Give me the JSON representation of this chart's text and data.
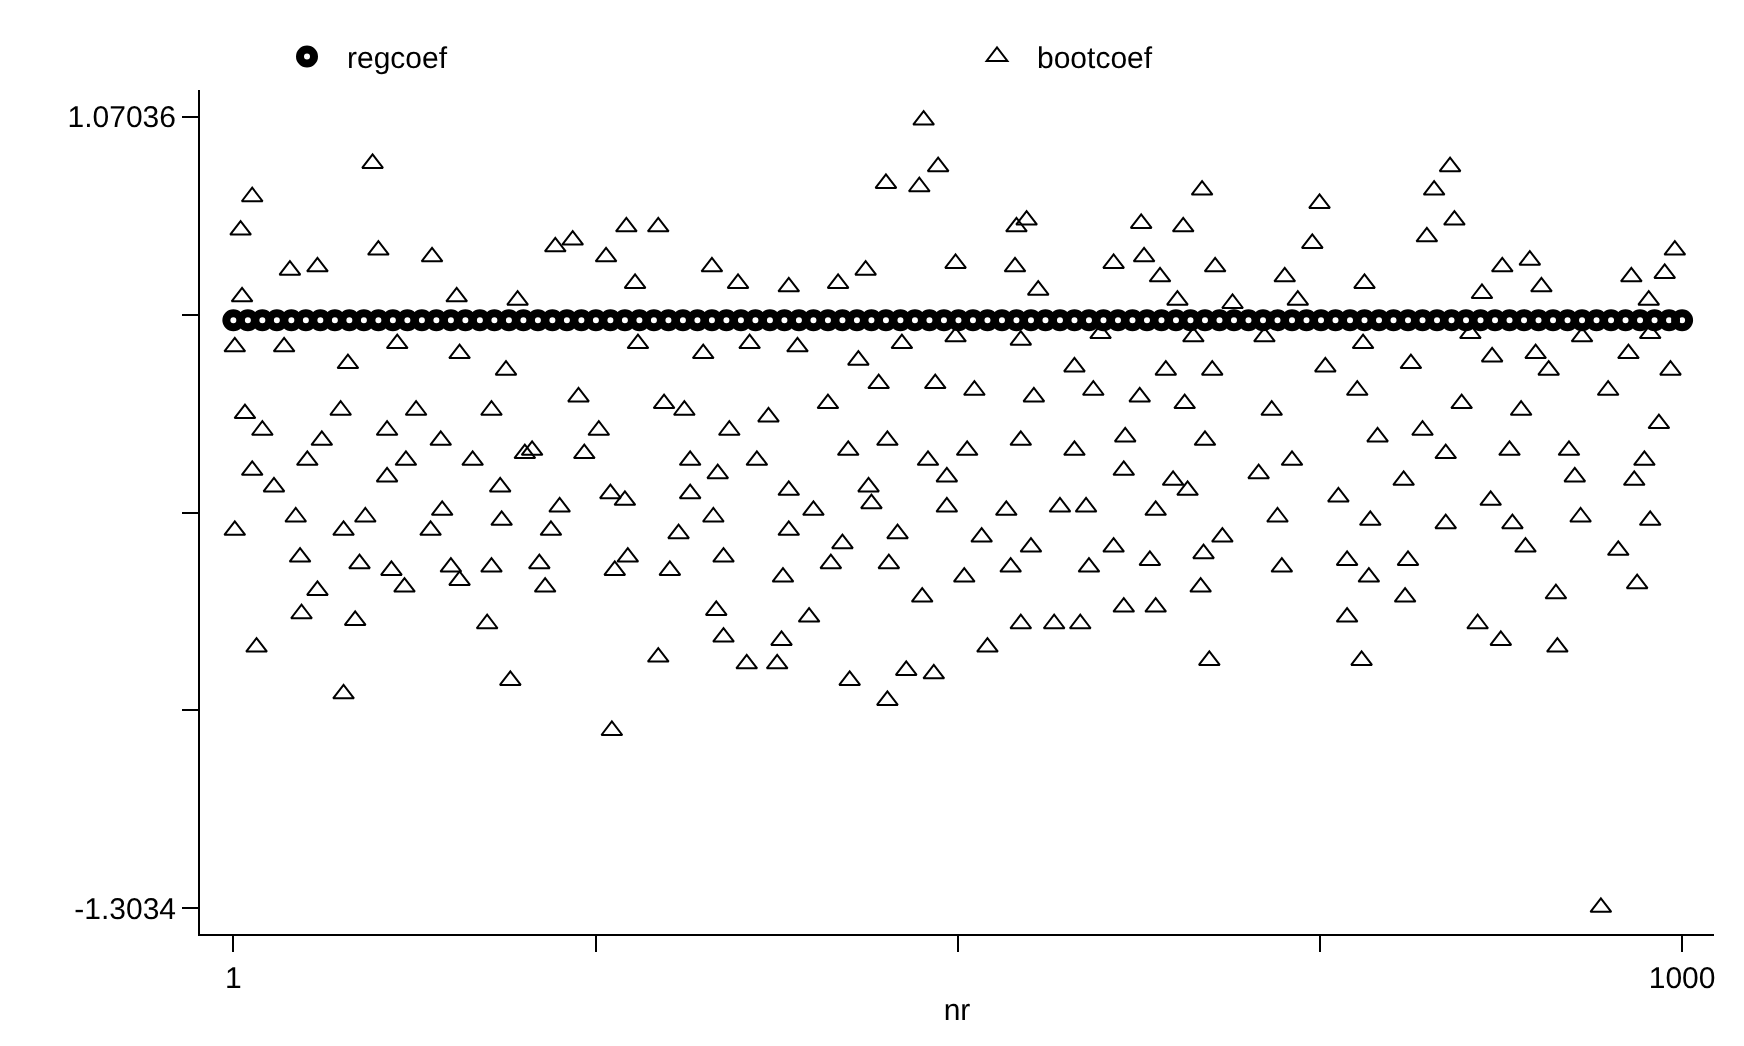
{
  "chart_data": {
    "type": "scatter",
    "xlabel": "nr",
    "legend": "top",
    "xlim": [
      -22,
      1022
    ],
    "xticks": [
      1,
      {
        "value": 250.75,
        "label": null
      },
      {
        "value": 500.5,
        "label": null
      },
      {
        "value": 750.25,
        "label": null
      },
      1000
    ],
    "ylim": [
      -1.38,
      1.15
    ],
    "yticks": [
      {
        "value": -1.3034,
        "label": "-1.3034"
      },
      {
        "value": -0.70996,
        "label": null
      },
      {
        "value": -0.11652,
        "label": null
      },
      {
        "value": 0.47692,
        "label": null
      },
      {
        "value": 1.07036,
        "label": "1.07036"
      }
    ],
    "series": [
      {
        "name": "regcoef",
        "color": "#000000",
        "marker": "circle",
        "x": [
          1,
          11,
          21,
          31,
          41,
          51,
          61,
          71,
          81,
          91,
          101,
          111,
          121,
          131,
          141,
          151,
          161,
          171,
          181,
          191,
          201,
          211,
          221,
          231,
          241,
          251,
          261,
          271,
          281,
          291,
          301,
          311,
          321,
          331,
          341,
          351,
          361,
          371,
          381,
          391,
          401,
          411,
          421,
          431,
          441,
          451,
          461,
          471,
          481,
          491,
          501,
          511,
          521,
          531,
          541,
          551,
          561,
          571,
          581,
          591,
          601,
          611,
          621,
          631,
          641,
          651,
          661,
          671,
          681,
          691,
          701,
          711,
          721,
          731,
          741,
          751,
          761,
          771,
          781,
          791,
          801,
          811,
          821,
          831,
          841,
          851,
          861,
          871,
          881,
          891,
          901,
          911,
          921,
          931,
          941,
          951,
          961,
          971,
          981,
          991,
          1000
        ],
        "values": [
          0.46,
          0.46,
          0.46,
          0.46,
          0.46,
          0.46,
          0.46,
          0.46,
          0.46,
          0.46,
          0.46,
          0.46,
          0.46,
          0.46,
          0.46,
          0.46,
          0.46,
          0.46,
          0.46,
          0.46,
          0.46,
          0.46,
          0.46,
          0.46,
          0.46,
          0.46,
          0.46,
          0.46,
          0.46,
          0.46,
          0.46,
          0.46,
          0.46,
          0.46,
          0.46,
          0.46,
          0.46,
          0.46,
          0.46,
          0.46,
          0.46,
          0.46,
          0.46,
          0.46,
          0.46,
          0.46,
          0.46,
          0.46,
          0.46,
          0.46,
          0.46,
          0.46,
          0.46,
          0.46,
          0.46,
          0.46,
          0.46,
          0.46,
          0.46,
          0.46,
          0.46,
          0.46,
          0.46,
          0.46,
          0.46,
          0.46,
          0.46,
          0.46,
          0.46,
          0.46,
          0.46,
          0.46,
          0.46,
          0.46,
          0.46,
          0.46,
          0.46,
          0.46,
          0.46,
          0.46,
          0.46,
          0.46,
          0.46,
          0.46,
          0.46,
          0.46,
          0.46,
          0.46,
          0.46,
          0.46,
          0.46,
          0.46,
          0.46,
          0.46,
          0.46,
          0.46,
          0.46,
          0.46,
          0.46,
          0.46,
          0.46
        ]
      },
      {
        "name": "bootcoef",
        "color": "#000000",
        "marker": "triangle",
        "x": [
          97,
          14,
          6,
          101,
          138,
          40,
          59,
          7,
          155,
          197,
          223,
          235,
          258,
          272,
          294,
          278,
          2,
          36,
          80,
          114,
          189,
          157,
          9,
          75,
          127,
          179,
          239,
          280,
          21,
          62,
          107,
          144,
          207,
          253,
          298,
          14,
          52,
          120,
          166,
          202,
          243,
          29,
          107,
          185,
          261,
          316,
          2,
          44,
          77,
          92,
          137,
          145,
          186,
          226,
          220,
          271,
          308,
          47,
          88,
          110,
          119,
          151,
          157,
          179,
          212,
          216,
          264,
          273,
          302,
          59,
          48,
          85,
          176,
          17,
          294,
          77,
          192,
          262,
          477,
          487,
          451,
          474,
          331,
          349,
          384,
          418,
          437,
          499,
          540,
          541,
          548,
          556,
          608,
          629,
          627,
          640,
          325,
          357,
          390,
          432,
          462,
          499,
          544,
          581,
          599,
          644,
          312,
          343,
          370,
          411,
          446,
          485,
          512,
          553,
          594,
          626,
          316,
          362,
          425,
          452,
          480,
          507,
          544,
          581,
          616,
          335,
          384,
          439,
          493,
          571,
          615,
          649,
          332,
          401,
          441,
          493,
          534,
          589,
          637,
          339,
          384,
          421,
          459,
          517,
          551,
          608,
          380,
          413,
          453,
          505,
          537,
          591,
          633,
          334,
          398,
          476,
          544,
          567,
          585,
          615,
          637,
          339,
          379,
          521,
          355,
          376,
          426,
          465,
          484,
          452,
          669,
          750,
          840,
          829,
          843,
          824,
          656,
          745,
          678,
          726,
          781,
          876,
          895,
          903,
          862,
          965,
          995,
          988,
          977,
          652,
          690,
          735,
          663,
          712,
          780,
          854,
          899,
          931,
          978,
          676,
          754,
          813,
          869,
          908,
          963,
          992,
          657,
          717,
          776,
          821,
          848,
          889,
          949,
          984,
          671,
          731,
          790,
          837,
          881,
          922,
          974,
          659,
          708,
          763,
          808,
          868,
          926,
          967,
          683,
          721,
          785,
          837,
          883,
          930,
          978,
          670,
          724,
          769,
          811,
          892,
          956,
          668,
          784,
          809,
          913,
          969,
          769,
          859,
          875,
          914,
          674,
          779,
          944
        ],
        "values": [
          0.93,
          0.83,
          0.73,
          0.67,
          0.65,
          0.61,
          0.62,
          0.53,
          0.53,
          0.52,
          0.68,
          0.7,
          0.65,
          0.74,
          0.74,
          0.57,
          0.38,
          0.38,
          0.33,
          0.39,
          0.31,
          0.36,
          0.18,
          0.19,
          0.19,
          0.19,
          0.23,
          0.39,
          0.13,
          0.1,
          0.13,
          0.1,
          0.07,
          0.13,
          0.21,
          0.01,
          0.04,
          0.04,
          0.04,
          0.06,
          0.06,
          -0.04,
          -0.01,
          -0.04,
          -0.06,
          -0.06,
          -0.17,
          -0.13,
          -0.17,
          -0.13,
          -0.17,
          -0.11,
          -0.14,
          -0.1,
          -0.17,
          -0.08,
          -0.18,
          -0.25,
          -0.27,
          -0.29,
          -0.34,
          -0.28,
          -0.32,
          -0.28,
          -0.27,
          -0.34,
          -0.29,
          -0.25,
          -0.29,
          -0.35,
          -0.42,
          -0.44,
          -0.45,
          -0.52,
          -0.55,
          -0.66,
          -0.62,
          -0.77,
          1.06,
          0.92,
          0.87,
          0.86,
          0.62,
          0.57,
          0.56,
          0.57,
          0.61,
          0.63,
          0.62,
          0.74,
          0.76,
          0.55,
          0.63,
          0.65,
          0.75,
          0.59,
          0.36,
          0.39,
          0.38,
          0.34,
          0.39,
          0.41,
          0.4,
          0.32,
          0.42,
          0.31,
          0.19,
          0.13,
          0.17,
          0.21,
          0.27,
          0.27,
          0.25,
          0.23,
          0.25,
          0.23,
          0.04,
          0.04,
          0.07,
          0.1,
          0.04,
          0.07,
          0.1,
          0.07,
          0.11,
          0.0,
          -0.05,
          -0.04,
          -0.01,
          -0.1,
          0.01,
          -0.02,
          -0.13,
          -0.11,
          -0.09,
          -0.1,
          -0.11,
          -0.1,
          -0.11,
          -0.25,
          -0.17,
          -0.21,
          -0.18,
          -0.19,
          -0.22,
          -0.22,
          -0.31,
          -0.27,
          -0.27,
          -0.31,
          -0.28,
          -0.28,
          -0.26,
          -0.41,
          -0.43,
          -0.37,
          -0.45,
          -0.45,
          -0.45,
          -0.4,
          -0.4,
          -0.49,
          -0.5,
          -0.52,
          -0.57,
          -0.57,
          -0.62,
          -0.59,
          -0.6,
          -0.68,
          0.85,
          0.81,
          0.92,
          0.85,
          0.76,
          0.71,
          0.74,
          0.69,
          0.62,
          0.59,
          0.57,
          0.62,
          0.64,
          0.56,
          0.54,
          0.59,
          0.67,
          0.6,
          0.52,
          0.52,
          0.51,
          0.52,
          0.41,
          0.41,
          0.39,
          0.42,
          0.36,
          0.41,
          0.42,
          0.31,
          0.32,
          0.33,
          0.35,
          0.31,
          0.36,
          0.31,
          0.21,
          0.19,
          0.25,
          0.13,
          0.21,
          0.19,
          0.25,
          0.15,
          0.1,
          0.04,
          0.11,
          0.06,
          0.07,
          0.07,
          0.04,
          -0.05,
          0.0,
          -0.07,
          -0.02,
          -0.08,
          -0.01,
          -0.02,
          -0.19,
          -0.13,
          -0.14,
          -0.15,
          -0.15,
          -0.13,
          -0.14,
          -0.24,
          -0.28,
          -0.26,
          -0.26,
          -0.22,
          -0.23,
          -0.34,
          -0.31,
          -0.37,
          -0.36,
          -0.33,
          -0.43,
          -0.45,
          -0.5,
          -0.52,
          -0.56,
          -0.56,
          -1.3
        ]
      }
    ]
  }
}
